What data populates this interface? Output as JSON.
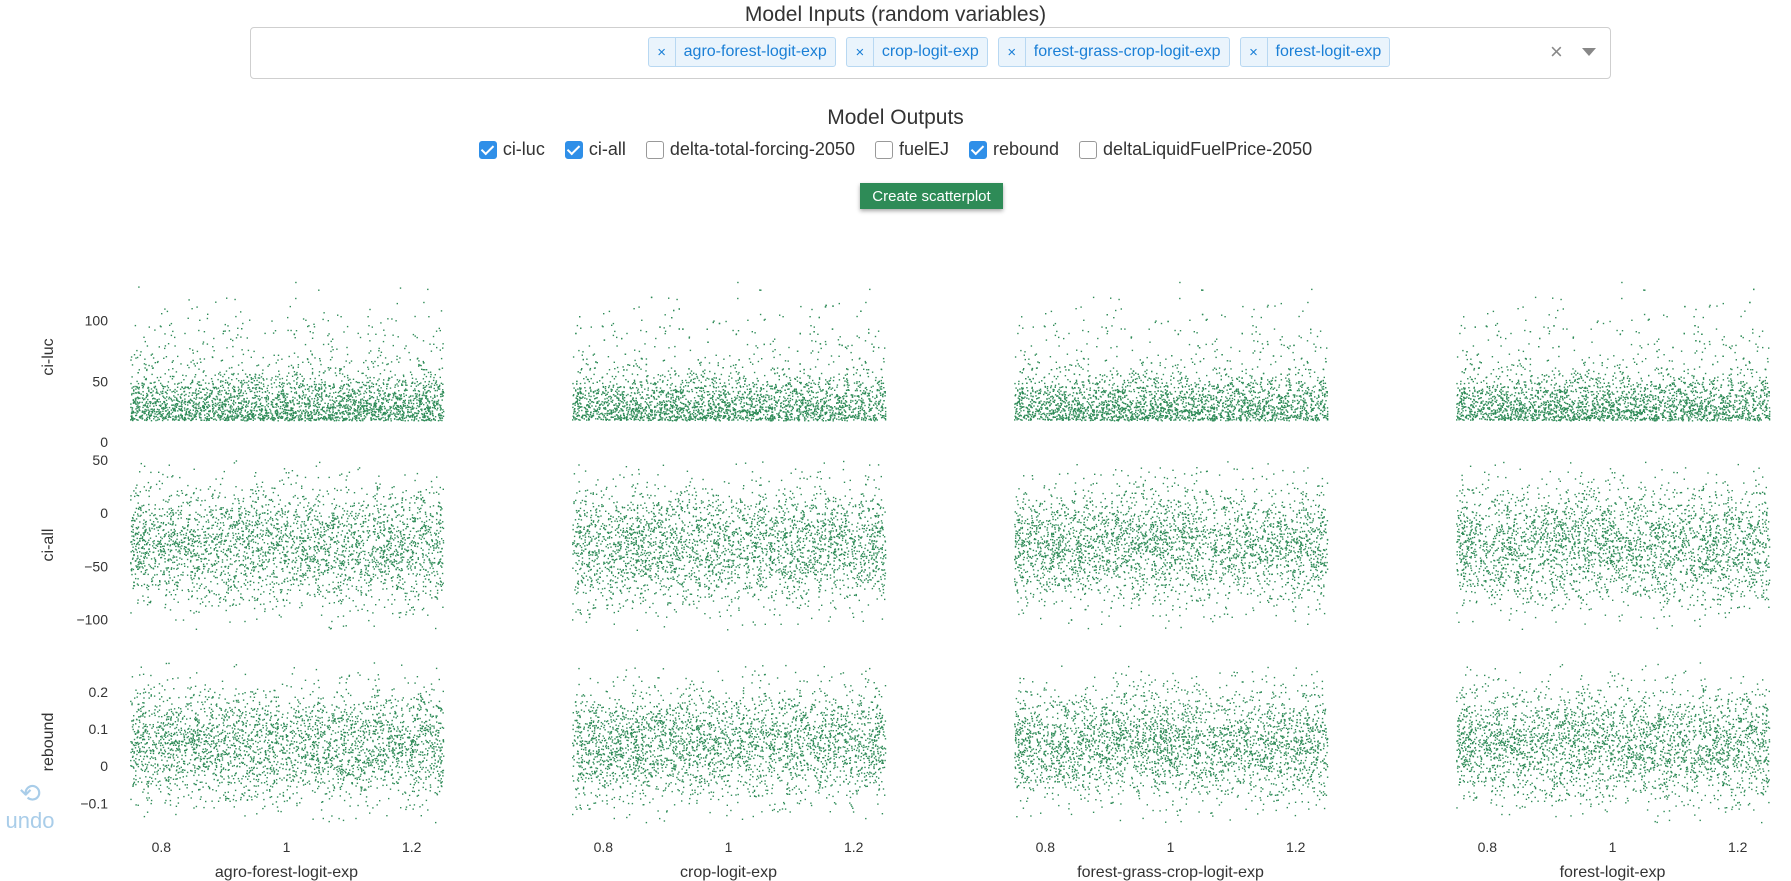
{
  "model_inputs": {
    "title": "Model Inputs (random variables)",
    "tags": [
      {
        "label": "agro-forest-logit-exp",
        "remove_glyph": "×"
      },
      {
        "label": "crop-logit-exp",
        "remove_glyph": "×"
      },
      {
        "label": "forest-grass-crop-logit-exp",
        "remove_glyph": "×"
      },
      {
        "label": "forest-logit-exp",
        "remove_glyph": "×"
      }
    ],
    "clear_glyph": "×"
  },
  "model_outputs": {
    "title": "Model Outputs",
    "options": [
      {
        "label": "ci-luc",
        "checked": true
      },
      {
        "label": "ci-all",
        "checked": true
      },
      {
        "label": "delta-total-forcing-2050",
        "checked": false
      },
      {
        "label": "fuelEJ",
        "checked": false
      },
      {
        "label": "rebound",
        "checked": true
      },
      {
        "label": "deltaLiquidFuelPrice-2050",
        "checked": false
      }
    ]
  },
  "create_button": "Create scatterplot",
  "undo": {
    "label": "undo",
    "icon": "undo-icon"
  },
  "colors": {
    "point": "#2e8b57",
    "accent": "#2f8fe8",
    "button": "#2e8b57"
  },
  "chart_data": {
    "type": "scatter",
    "columns": [
      "agro-forest-logit-exp",
      "crop-logit-exp",
      "forest-grass-crop-logit-exp",
      "forest-logit-exp"
    ],
    "xlim": [
      0.75,
      1.25
    ],
    "xticks": [
      0.8,
      1,
      1.2
    ],
    "xtick_labels": [
      "0.8",
      "1",
      "1.2"
    ],
    "rows": [
      {
        "ylabel": "ci-luc",
        "ylim": [
          0,
          140
        ],
        "yticks": [
          0,
          50,
          100
        ],
        "ytick_labels": [
          "0",
          "50",
          "100"
        ],
        "center": 32,
        "spread_low": 18,
        "spread_high": 105,
        "skew": "right"
      },
      {
        "ylabel": "ci-all",
        "ylim": [
          -110,
          50
        ],
        "yticks": [
          -100,
          -50,
          0,
          50
        ],
        "ytick_labels": [
          "−100",
          "−50",
          "0",
          "50"
        ],
        "center": -30,
        "spread_low": -105,
        "spread_high": 40,
        "skew": "normal"
      },
      {
        "ylabel": "rebound",
        "ylim": [
          -0.15,
          0.28
        ],
        "yticks": [
          -0.1,
          0,
          0.1,
          0.2
        ],
        "ytick_labels": [
          "−0.1",
          "0",
          "0.1",
          "0.2"
        ],
        "center": 0.06,
        "spread_low": -0.13,
        "spread_high": 0.26,
        "skew": "normal"
      }
    ],
    "point_count_per_panel": 3000
  }
}
